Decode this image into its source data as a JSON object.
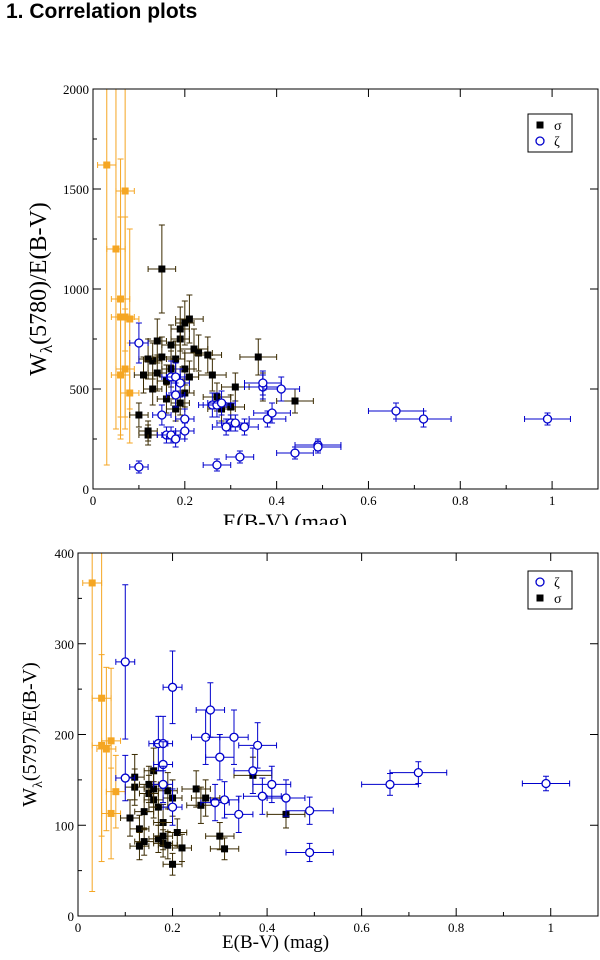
{
  "page": {
    "heading": "1. Correlation plots"
  },
  "colors": {
    "sigma": "#000000",
    "zeta": "#0000cc",
    "orange": "#f5a623",
    "errbar_dark": "#3a2a00"
  },
  "chart_data": [
    {
      "type": "scatter",
      "title": "",
      "xlabel": "E(B-V) (mag)",
      "ylabel_main": "W",
      "ylabel_sub": "λ",
      "ylabel_rest": "(5780)/E(B-V)",
      "xlim": [
        0,
        1.1
      ],
      "ylim": [
        0,
        2000
      ],
      "xticks": [
        "0",
        "0.2",
        "0.4",
        "0.6",
        "0.8",
        "1"
      ],
      "xtick_values": [
        0,
        0.2,
        0.4,
        0.6,
        0.8,
        1.0
      ],
      "yticks": [
        "0",
        "500",
        "1000",
        "1500",
        "2000"
      ],
      "ytick_values": [
        0,
        500,
        1000,
        1500,
        2000
      ],
      "legend": {
        "position": "top-right",
        "entries": [
          {
            "name": "σ",
            "marker": "filled-square"
          },
          {
            "name": "ζ",
            "marker": "open-circle"
          }
        ]
      },
      "series": [
        {
          "name": "σ",
          "marker": "filled-square",
          "points": [
            [
              0.1,
              370,
              0.02,
              60
            ],
            [
              0.11,
              570,
              0.02,
              90
            ],
            [
              0.12,
              650,
              0.02,
              100
            ],
            [
              0.12,
              270,
              0.02,
              50
            ],
            [
              0.13,
              640,
              0.02,
              90
            ],
            [
              0.13,
              500,
              0.02,
              80
            ],
            [
              0.14,
              580,
              0.02,
              90
            ],
            [
              0.14,
              740,
              0.02,
              110
            ],
            [
              0.15,
              1100,
              0.03,
              220
            ],
            [
              0.15,
              660,
              0.02,
              100
            ],
            [
              0.16,
              450,
              0.02,
              70
            ],
            [
              0.16,
              540,
              0.02,
              80
            ],
            [
              0.17,
              600,
              0.02,
              90
            ],
            [
              0.17,
              720,
              0.02,
              100
            ],
            [
              0.18,
              650,
              0.02,
              90
            ],
            [
              0.18,
              400,
              0.02,
              60
            ],
            [
              0.19,
              750,
              0.02,
              100
            ],
            [
              0.19,
              800,
              0.02,
              110
            ],
            [
              0.2,
              830,
              0.02,
              110
            ],
            [
              0.2,
              480,
              0.02,
              70
            ],
            [
              0.2,
              600,
              0.02,
              80
            ],
            [
              0.21,
              850,
              0.03,
              120
            ],
            [
              0.21,
              560,
              0.02,
              80
            ],
            [
              0.22,
              700,
              0.03,
              100
            ],
            [
              0.23,
              680,
              0.03,
              90
            ],
            [
              0.25,
              670,
              0.03,
              90
            ],
            [
              0.26,
              570,
              0.03,
              80
            ],
            [
              0.27,
              460,
              0.03,
              70
            ],
            [
              0.28,
              400,
              0.03,
              60
            ],
            [
              0.3,
              410,
              0.03,
              60
            ],
            [
              0.31,
              510,
              0.03,
              70
            ],
            [
              0.36,
              660,
              0.04,
              90
            ],
            [
              0.37,
              510,
              0.04,
              70
            ],
            [
              0.44,
              440,
              0.04,
              60
            ],
            [
              0.12,
              290,
              0.02,
              50
            ],
            [
              0.19,
              430,
              0.02,
              60
            ]
          ]
        },
        {
          "name": "ζ",
          "marker": "open-circle",
          "points": [
            [
              0.1,
              110,
              0.02,
              30
            ],
            [
              0.1,
              730,
              0.02,
              100
            ],
            [
              0.15,
              370,
              0.02,
              50
            ],
            [
              0.16,
              270,
              0.02,
              40
            ],
            [
              0.17,
              560,
              0.02,
              80
            ],
            [
              0.17,
              270,
              0.02,
              40
            ],
            [
              0.18,
              250,
              0.02,
              40
            ],
            [
              0.18,
              560,
              0.02,
              70
            ],
            [
              0.19,
              530,
              0.02,
              70
            ],
            [
              0.2,
              350,
              0.02,
              50
            ],
            [
              0.2,
              290,
              0.02,
              40
            ],
            [
              0.26,
              420,
              0.03,
              60
            ],
            [
              0.27,
              120,
              0.03,
              30
            ],
            [
              0.27,
              420,
              0.03,
              60
            ],
            [
              0.28,
              430,
              0.03,
              60
            ],
            [
              0.3,
              330,
              0.03,
              40
            ],
            [
              0.31,
              330,
              0.03,
              40
            ],
            [
              0.32,
              160,
              0.03,
              30
            ],
            [
              0.33,
              310,
              0.03,
              40
            ],
            [
              0.37,
              510,
              0.04,
              60
            ],
            [
              0.37,
              530,
              0.04,
              60
            ],
            [
              0.38,
              350,
              0.04,
              40
            ],
            [
              0.39,
              380,
              0.04,
              50
            ],
            [
              0.41,
              500,
              0.04,
              60
            ],
            [
              0.44,
              180,
              0.04,
              30
            ],
            [
              0.49,
              220,
              0.05,
              30
            ],
            [
              0.49,
              210,
              0.05,
              30
            ],
            [
              0.66,
              390,
              0.06,
              40
            ],
            [
              0.72,
              350,
              0.06,
              40
            ],
            [
              0.99,
              350,
              0.05,
              30
            ],
            [
              0.18,
              470,
              0.02,
              60
            ],
            [
              0.29,
              310,
              0.03,
              40
            ]
          ]
        },
        {
          "name": "orange",
          "marker": "filled-square",
          "points": [
            [
              0.03,
              1620,
              0.02,
              1500
            ],
            [
              0.05,
              1200,
              0.02,
              900
            ],
            [
              0.06,
              950,
              0.02,
              700
            ],
            [
              0.06,
              860,
              0.02,
              500
            ],
            [
              0.07,
              1490,
              0.02,
              800
            ],
            [
              0.07,
              860,
              0.02,
              500
            ],
            [
              0.08,
              850,
              0.02,
              450
            ],
            [
              0.06,
              570,
              0.02,
              300
            ],
            [
              0.07,
              600,
              0.02,
              300
            ],
            [
              0.08,
              480,
              0.02,
              250
            ]
          ]
        }
      ]
    },
    {
      "type": "scatter",
      "title": "",
      "xlabel": "E(B-V) (mag)",
      "ylabel_main": "W",
      "ylabel_sub": "λ",
      "ylabel_rest": "(5797)/E(B-V)",
      "xlim": [
        0,
        1.1
      ],
      "ylim": [
        0,
        400
      ],
      "xticks": [
        "0",
        "0.2",
        "0.4",
        "0.6",
        "0.8",
        "1"
      ],
      "xtick_values": [
        0,
        0.2,
        0.4,
        0.6,
        0.8,
        1.0
      ],
      "yticks": [
        "0",
        "100",
        "200",
        "300",
        "400"
      ],
      "ytick_values": [
        0,
        100,
        200,
        300,
        400
      ],
      "legend": {
        "position": "top-right",
        "entries": [
          {
            "name": "ζ",
            "marker": "open-circle"
          },
          {
            "name": "σ",
            "marker": "filled-square"
          }
        ]
      },
      "series": [
        {
          "name": "ζ",
          "marker": "open-circle",
          "points": [
            [
              0.1,
              280,
              0.02,
              85
            ],
            [
              0.1,
              152,
              0.02,
              25
            ],
            [
              0.17,
              190,
              0.02,
              30
            ],
            [
              0.18,
              190,
              0.02,
              30
            ],
            [
              0.18,
              167,
              0.02,
              25
            ],
            [
              0.18,
              145,
              0.02,
              20
            ],
            [
              0.2,
              252,
              0.02,
              40
            ],
            [
              0.2,
              120,
              0.02,
              20
            ],
            [
              0.27,
              197,
              0.03,
              30
            ],
            [
              0.28,
              227,
              0.03,
              30
            ],
            [
              0.29,
              125,
              0.03,
              20
            ],
            [
              0.3,
              175,
              0.03,
              25
            ],
            [
              0.31,
              128,
              0.03,
              20
            ],
            [
              0.33,
              197,
              0.03,
              30
            ],
            [
              0.34,
              112,
              0.03,
              20
            ],
            [
              0.37,
              160,
              0.04,
              25
            ],
            [
              0.38,
              188,
              0.04,
              25
            ],
            [
              0.39,
              132,
              0.04,
              20
            ],
            [
              0.41,
              145,
              0.04,
              20
            ],
            [
              0.44,
              130,
              0.04,
              20
            ],
            [
              0.49,
              116,
              0.05,
              15
            ],
            [
              0.49,
              70,
              0.05,
              10
            ],
            [
              0.66,
              145,
              0.06,
              12
            ],
            [
              0.72,
              158,
              0.06,
              12
            ],
            [
              0.99,
              146,
              0.05,
              8
            ]
          ]
        },
        {
          "name": "σ",
          "marker": "filled-square",
          "points": [
            [
              0.11,
              108,
              0.02,
              20
            ],
            [
              0.12,
              142,
              0.02,
              20
            ],
            [
              0.12,
              153,
              0.02,
              25
            ],
            [
              0.13,
              96,
              0.02,
              15
            ],
            [
              0.13,
              77,
              0.02,
              15
            ],
            [
              0.14,
              82,
              0.02,
              15
            ],
            [
              0.14,
              115,
              0.02,
              20
            ],
            [
              0.15,
              135,
              0.02,
              20
            ],
            [
              0.15,
              145,
              0.02,
              20
            ],
            [
              0.16,
              128,
              0.02,
              20
            ],
            [
              0.16,
              160,
              0.02,
              25
            ],
            [
              0.17,
              85,
              0.02,
              15
            ],
            [
              0.17,
              120,
              0.02,
              20
            ],
            [
              0.18,
              103,
              0.02,
              20
            ],
            [
              0.18,
              80,
              0.02,
              15
            ],
            [
              0.19,
              138,
              0.02,
              20
            ],
            [
              0.19,
              78,
              0.02,
              15
            ],
            [
              0.2,
              57,
              0.02,
              12
            ],
            [
              0.2,
              130,
              0.02,
              20
            ],
            [
              0.21,
              92,
              0.02,
              15
            ],
            [
              0.22,
              75,
              0.02,
              15
            ],
            [
              0.25,
              140,
              0.03,
              20
            ],
            [
              0.26,
              122,
              0.03,
              20
            ],
            [
              0.27,
              130,
              0.03,
              20
            ],
            [
              0.3,
              88,
              0.03,
              15
            ],
            [
              0.31,
              74,
              0.03,
              12
            ],
            [
              0.37,
              155,
              0.04,
              20
            ],
            [
              0.44,
              112,
              0.04,
              15
            ],
            [
              0.16,
              140,
              0.02,
              20
            ],
            [
              0.18,
              88,
              0.02,
              15
            ]
          ]
        },
        {
          "name": "orange",
          "marker": "filled-square",
          "points": [
            [
              0.03,
              367,
              0.02,
              340
            ],
            [
              0.05,
              240,
              0.02,
              180
            ],
            [
              0.05,
              188,
              0.02,
              100
            ],
            [
              0.06,
              184,
              0.02,
              90
            ],
            [
              0.07,
              193,
              0.02,
              80
            ],
            [
              0.07,
              113,
              0.02,
              50
            ],
            [
              0.08,
              137,
              0.02,
              40
            ]
          ]
        }
      ]
    }
  ]
}
